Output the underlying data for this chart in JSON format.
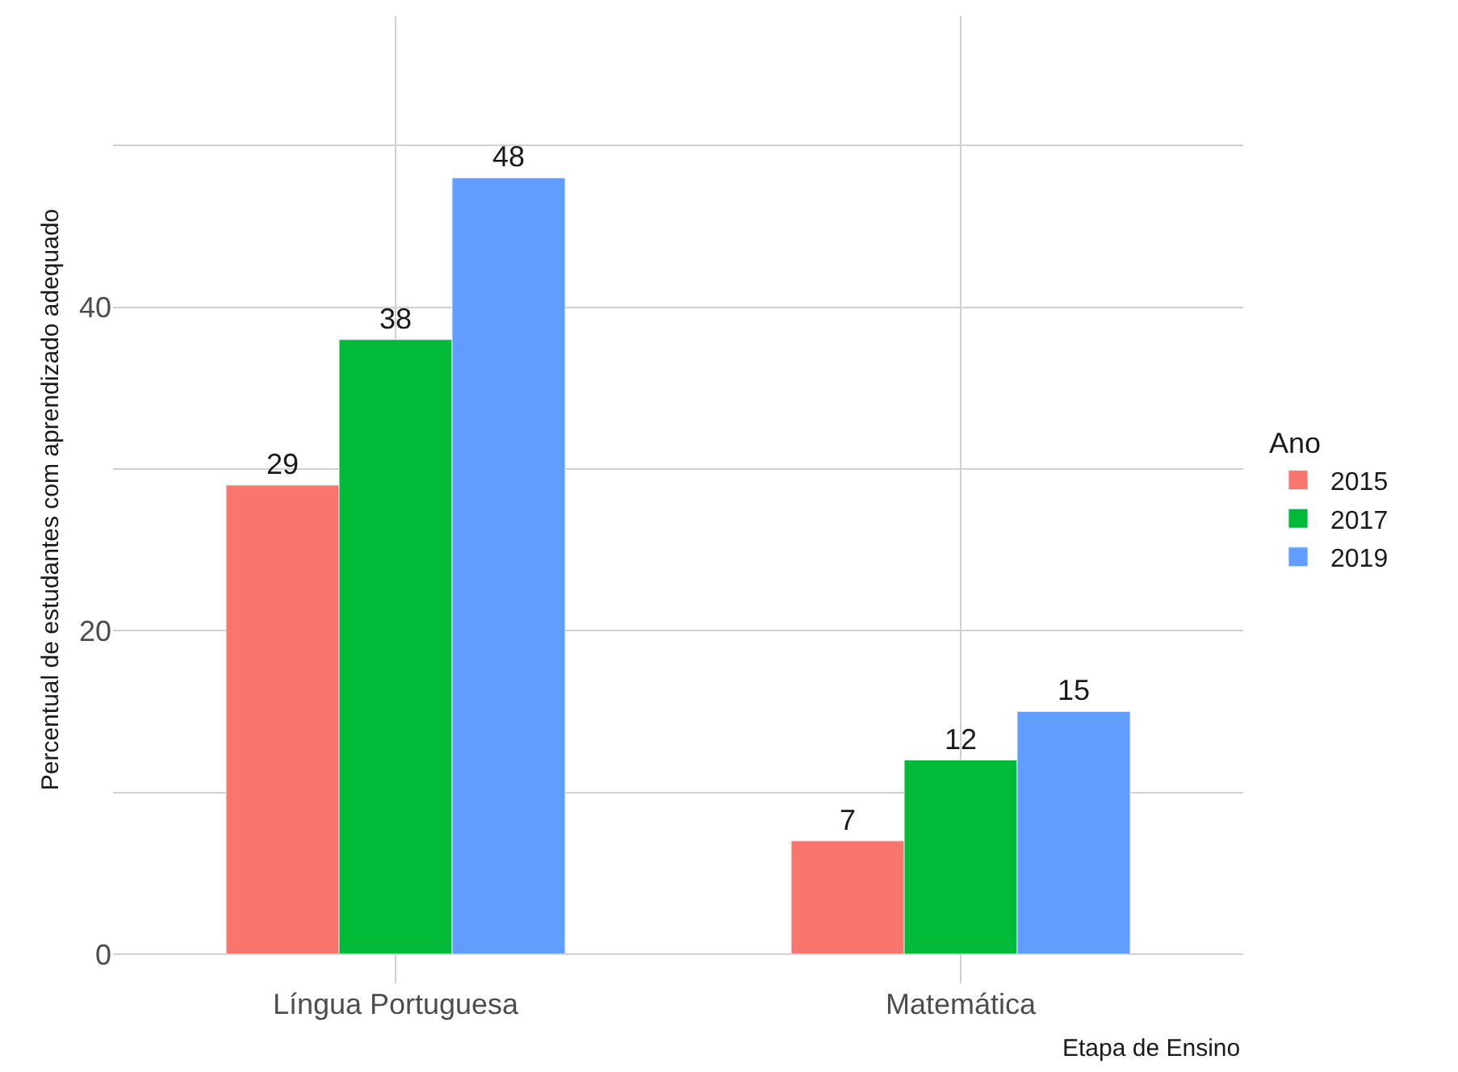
{
  "chart_data": {
    "type": "bar",
    "xlabel": "Etapa de Ensino",
    "ylabel": "Percentual de estudantes com aprendizado adequado",
    "legend_title": "Ano",
    "categories": [
      "Língua Portuguesa",
      "Matemática"
    ],
    "series": [
      {
        "name": "2015",
        "color": "#f8766d",
        "values": [
          29,
          7
        ]
      },
      {
        "name": "2017",
        "color": "#00ba38",
        "values": [
          38,
          12
        ]
      },
      {
        "name": "2019",
        "color": "#619cff",
        "values": [
          48,
          15
        ]
      }
    ],
    "ylim": [
      -1.8,
      58
    ],
    "yticks": [
      0,
      {
        "value": 10,
        "label": null
      },
      20,
      {
        "value": 30,
        "label": null
      },
      40,
      {
        "value": 50,
        "label": null
      }
    ],
    "grid": true,
    "legend": "right",
    "data_labels": true
  }
}
